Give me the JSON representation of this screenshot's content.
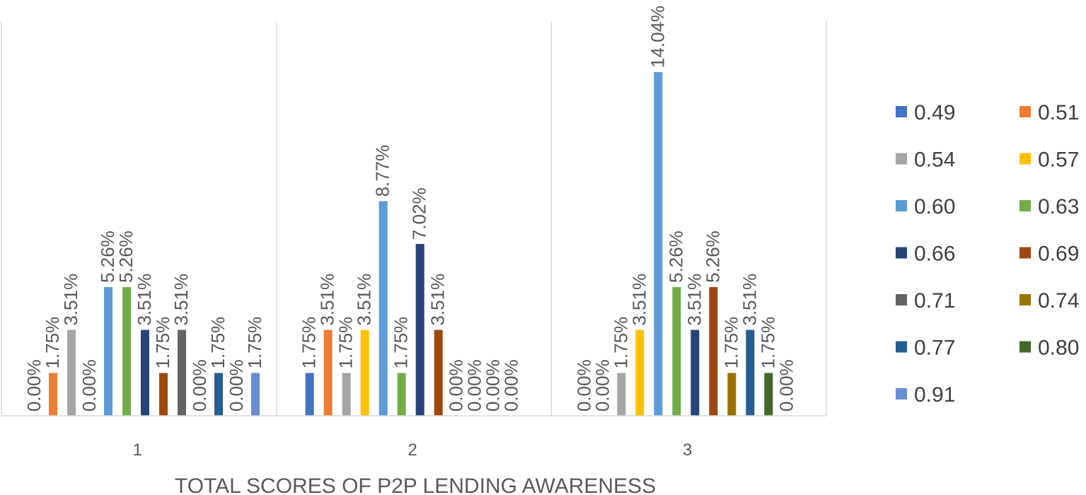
{
  "chart_data": {
    "type": "bar",
    "categories": [
      "1",
      "2",
      "3"
    ],
    "xlabel": "TOTAL SCORES OF P2P LENDING AWARENESS",
    "ylabel": "",
    "ylim": [
      0,
      16
    ],
    "grid": false,
    "legend_position": "right",
    "value_format": "percent",
    "series": [
      {
        "name": "0.49",
        "color": "#4472C4",
        "values": [
          null,
          1.75,
          null
        ]
      },
      {
        "name": "0.51",
        "color": "#ED7D31",
        "values": [
          1.75,
          3.51,
          null
        ]
      },
      {
        "name": "0.54",
        "color": "#A5A5A5",
        "values": [
          3.51,
          1.75,
          1.75
        ]
      },
      {
        "name": "0.57",
        "color": "#FFC000",
        "values": [
          0.0,
          3.51,
          3.51
        ]
      },
      {
        "name": "0.60",
        "color": "#5B9BD5",
        "values": [
          5.26,
          8.77,
          14.04
        ]
      },
      {
        "name": "0.63",
        "color": "#70AD47",
        "values": [
          5.26,
          1.75,
          5.26
        ]
      },
      {
        "name": "0.66",
        "color": "#264478",
        "values": [
          3.51,
          7.02,
          3.51
        ]
      },
      {
        "name": "0.69",
        "color": "#9E480E",
        "values": [
          1.75,
          3.51,
          5.26
        ]
      },
      {
        "name": "0.71",
        "color": "#636363",
        "values": [
          3.51,
          0.0,
          null
        ]
      },
      {
        "name": "0.74",
        "color": "#997300",
        "values": [
          0.0,
          0.0,
          1.75
        ]
      },
      {
        "name": "0.77",
        "color": "#255E91",
        "values": [
          1.75,
          0.0,
          3.51
        ]
      },
      {
        "name": "0.80",
        "color": "#43682B",
        "values": [
          0.0,
          0.0,
          1.75
        ]
      },
      {
        "name": "0.91",
        "color": "#698ED0",
        "values": [
          1.75,
          null,
          0.0
        ]
      }
    ],
    "extra_labels": [
      {
        "category": 0,
        "text": "0.00%"
      },
      {
        "category": 2,
        "text": "0.00%"
      },
      {
        "category": 2,
        "text": "0.00%"
      }
    ]
  }
}
